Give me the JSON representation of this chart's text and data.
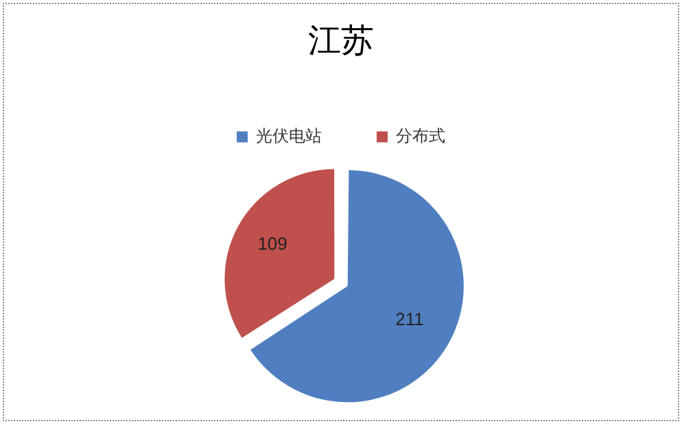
{
  "chart_data": {
    "type": "pie",
    "title": "江苏",
    "categories": [
      "光伏电站",
      "分布式"
    ],
    "values": [
      211,
      109
    ],
    "colors": [
      "#4f7fc0",
      "#c0504d"
    ],
    "data_labels": true,
    "legend": "top"
  }
}
